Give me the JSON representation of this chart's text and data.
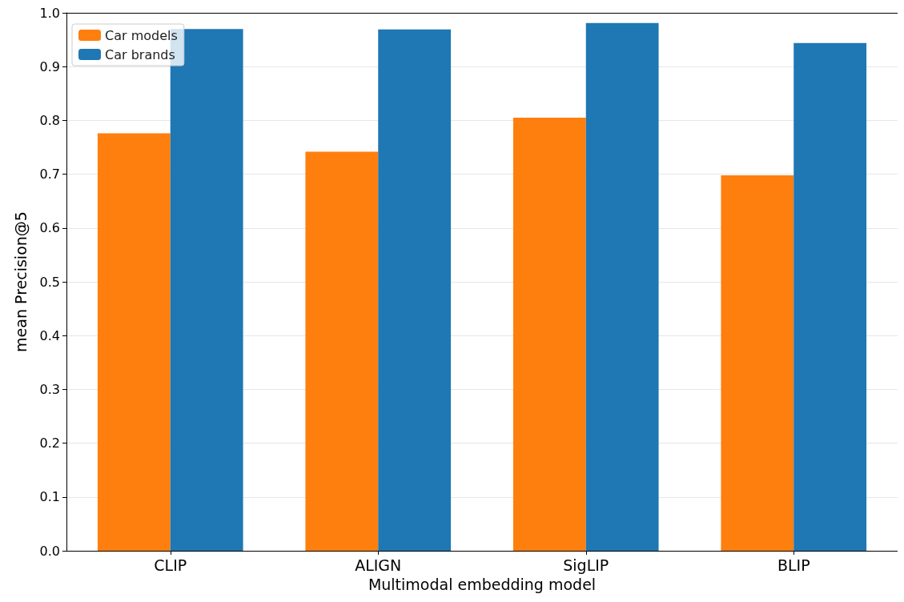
{
  "chart_data": {
    "type": "bar",
    "xlabel": "Multimodal embedding model",
    "ylabel": "mean Precision@5",
    "categories": [
      "CLIP",
      "ALIGN",
      "SigLIP",
      "BLIP"
    ],
    "series": [
      {
        "name": "Car models",
        "color": "#ff7f0e",
        "values": [
          0.776,
          0.742,
          0.805,
          0.698
        ]
      },
      {
        "name": "Car brands",
        "color": "#1f77b4",
        "values": [
          0.97,
          0.969,
          0.981,
          0.944
        ]
      }
    ],
    "ylim": [
      0,
      1
    ],
    "yticks": [
      {
        "value": 0,
        "label": "0.0"
      },
      0.1,
      0.2,
      0.3,
      0.4,
      0.5,
      0.6,
      0.7,
      0.8,
      0.9,
      {
        "value": 1,
        "label": "1.0"
      }
    ],
    "grid": "y",
    "legend": "top left"
  }
}
